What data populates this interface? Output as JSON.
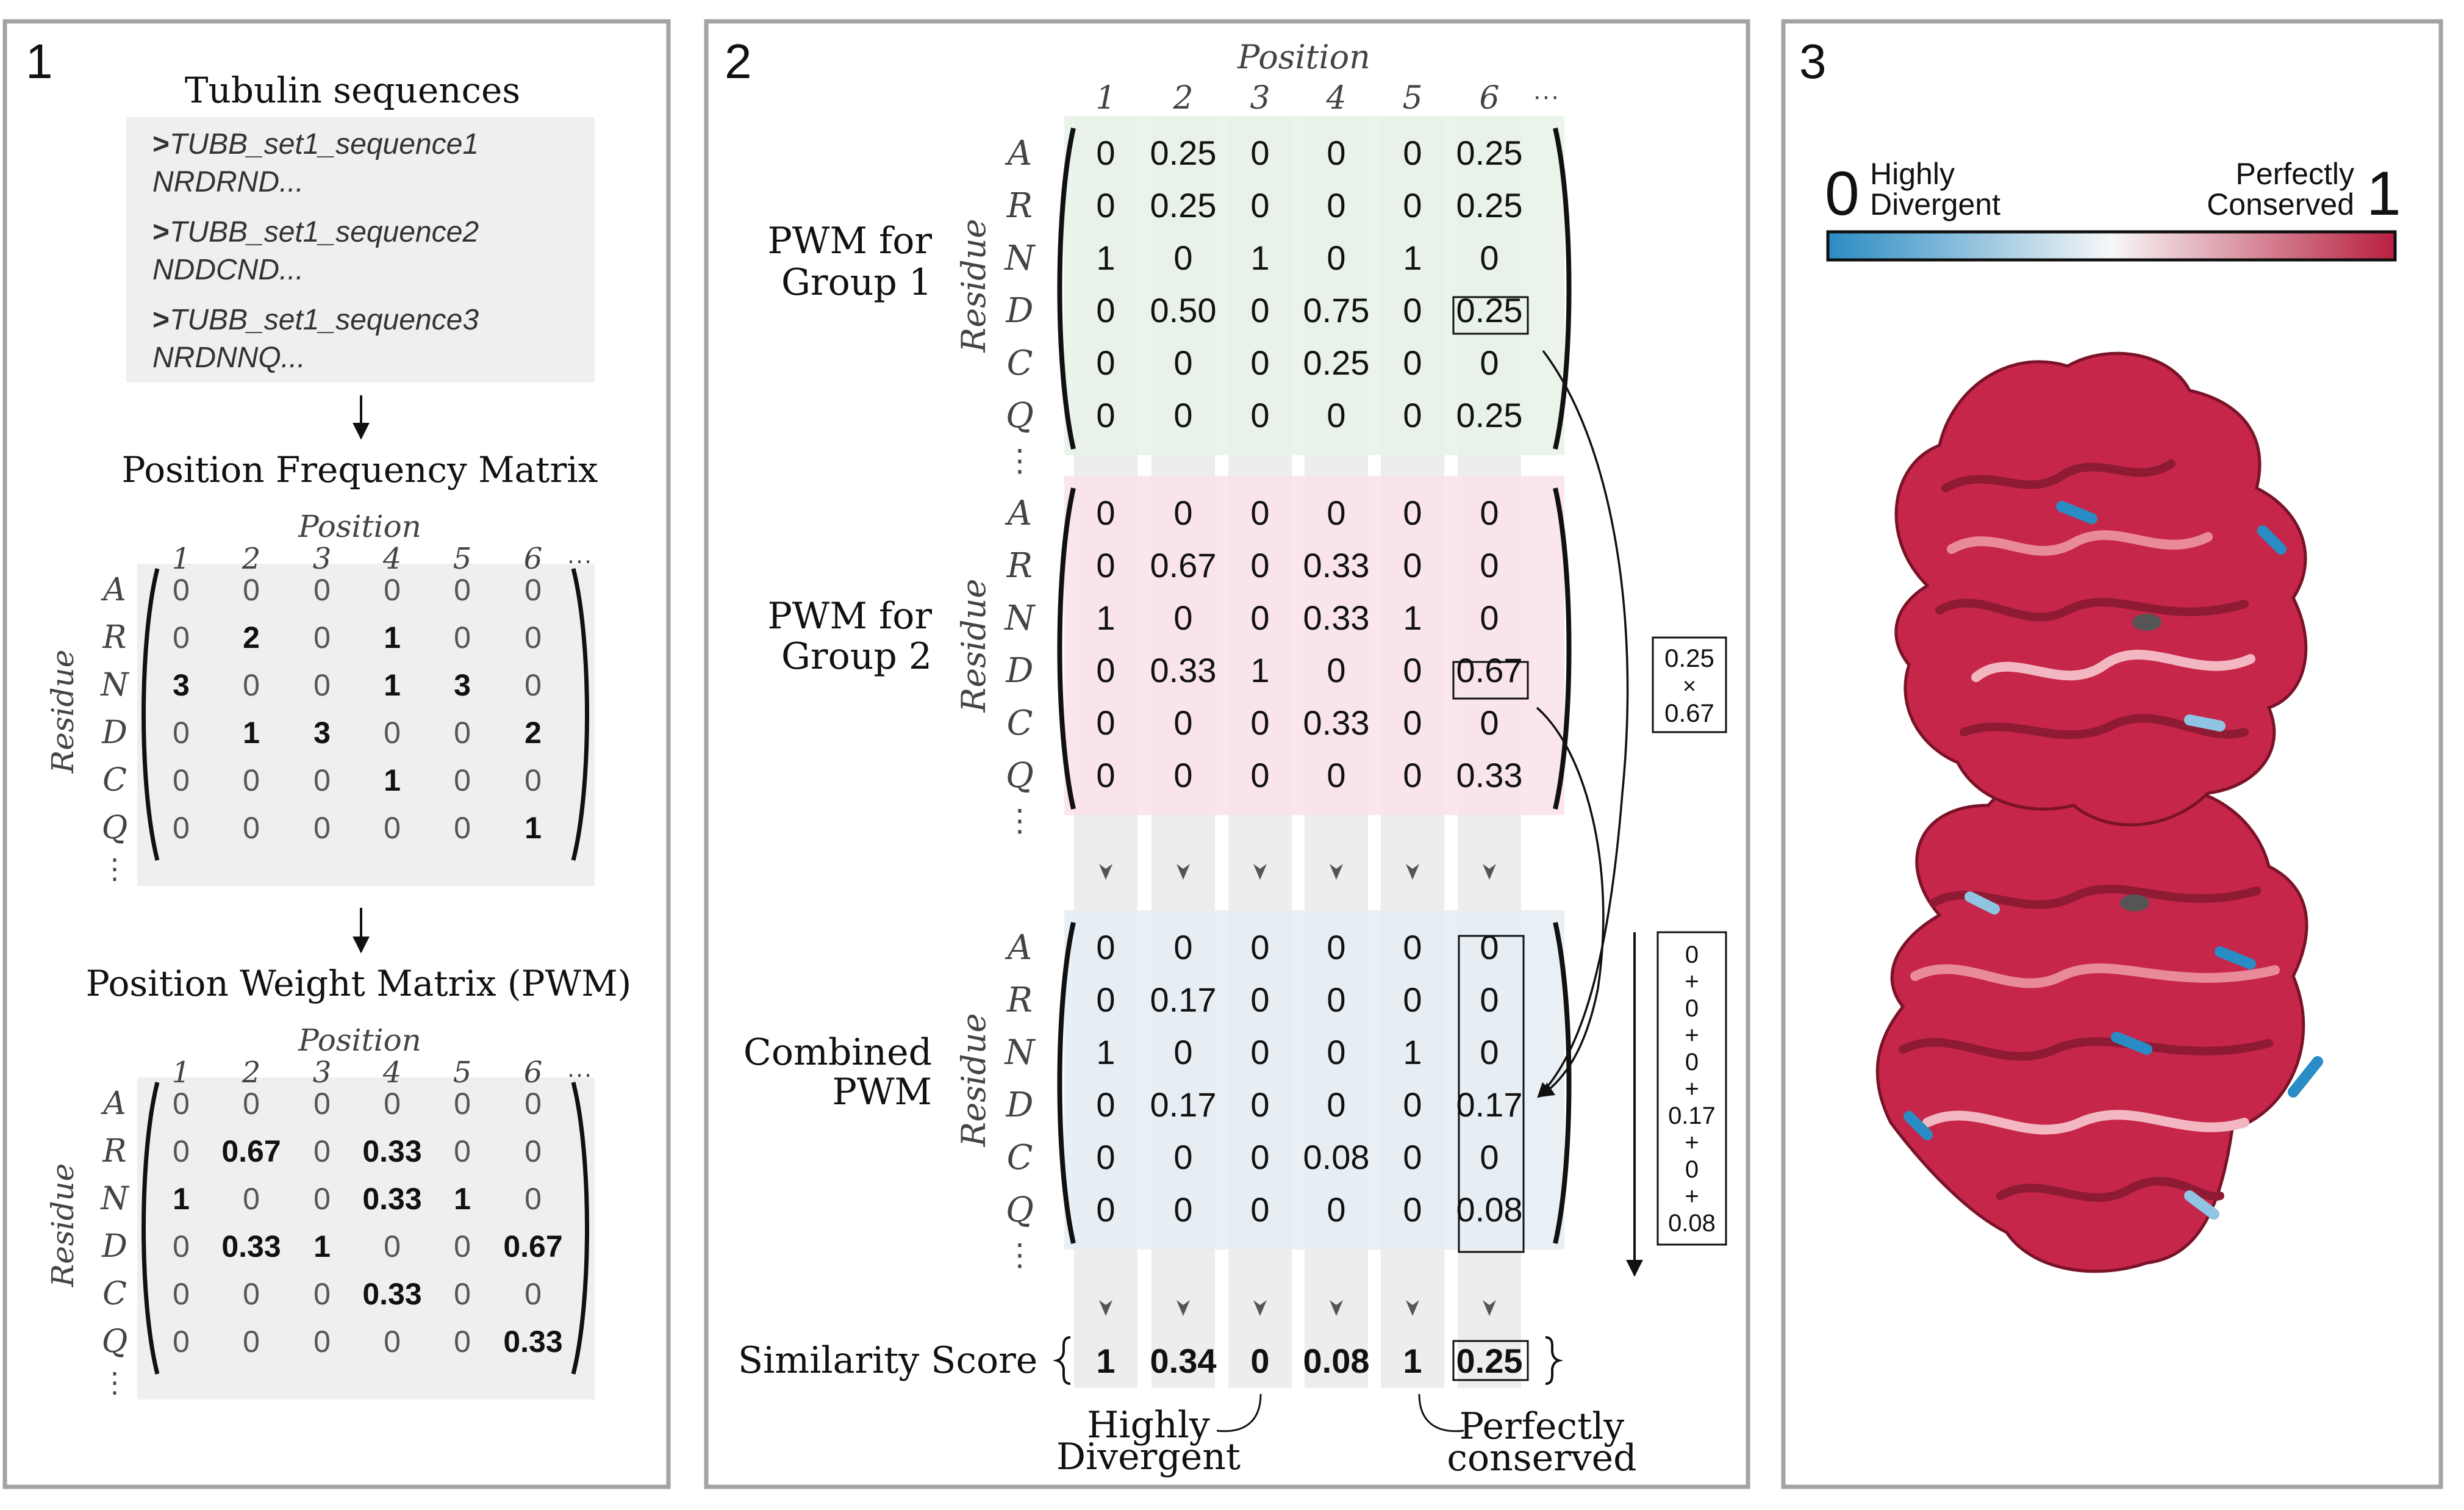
{
  "panels": [
    {
      "number": "1"
    },
    {
      "number": "2"
    },
    {
      "number": "3"
    }
  ],
  "panel1": {
    "title": "Tubulin sequences",
    "sequences": [
      {
        "header_prefix": ">",
        "header": "TUBB_set1_sequence1",
        "seq": "NRDRND..."
      },
      {
        "header_prefix": ">",
        "header": "TUBB_set1_sequence2",
        "seq": "NDDCND..."
      },
      {
        "header_prefix": ">",
        "header": "TUBB_set1_sequence3",
        "seq": "NRDNNQ..."
      }
    ],
    "pfm_title": "Position Frequency Matrix",
    "pwm_title": "Position Weight Matrix (PWM)",
    "position_label": "Position",
    "residue_label": "Residue",
    "columns": [
      "1",
      "2",
      "3",
      "4",
      "5",
      "6"
    ],
    "columns_more": "···",
    "residues": [
      "A",
      "R",
      "N",
      "D",
      "C",
      "Q"
    ],
    "rows_more": "⋮",
    "pfm": [
      [
        "0",
        "0",
        "0",
        "0",
        "0",
        "0"
      ],
      [
        "0",
        "2",
        "0",
        "1",
        "0",
        "0"
      ],
      [
        "3",
        "0",
        "0",
        "1",
        "3",
        "0"
      ],
      [
        "0",
        "1",
        "3",
        "0",
        "0",
        "2"
      ],
      [
        "0",
        "0",
        "0",
        "1",
        "0",
        "0"
      ],
      [
        "0",
        "0",
        "0",
        "0",
        "0",
        "1"
      ]
    ],
    "pwm": [
      [
        "0",
        "0",
        "0",
        "0",
        "0",
        "0"
      ],
      [
        "0",
        "0.67",
        "0",
        "0.33",
        "0",
        "0"
      ],
      [
        "1",
        "0",
        "0",
        "0.33",
        "1",
        "0"
      ],
      [
        "0",
        "0.33",
        "1",
        "0",
        "0",
        "0.67"
      ],
      [
        "0",
        "0",
        "0",
        "0.33",
        "0",
        "0"
      ],
      [
        "0",
        "0",
        "0",
        "0",
        "0",
        "0.33"
      ]
    ]
  },
  "panel2": {
    "position_label": "Position",
    "residue_label": "Residue",
    "columns": [
      "1",
      "2",
      "3",
      "4",
      "5",
      "6"
    ],
    "columns_more": "···",
    "residues": [
      "A",
      "R",
      "N",
      "D",
      "C",
      "Q"
    ],
    "rows_more": "⋮",
    "group1_label": [
      "PWM for",
      "Group 1"
    ],
    "group2_label": [
      "PWM for",
      "Group 2"
    ],
    "combined_label": [
      "Combined",
      "PWM"
    ],
    "group1": [
      [
        "0",
        "0.25",
        "0",
        "0",
        "0",
        "0.25"
      ],
      [
        "0",
        "0.25",
        "0",
        "0",
        "0",
        "0.25"
      ],
      [
        "1",
        "0",
        "1",
        "0",
        "1",
        "0"
      ],
      [
        "0",
        "0.50",
        "0",
        "0.75",
        "0",
        "0.25"
      ],
      [
        "0",
        "0",
        "0",
        "0.25",
        "0",
        "0"
      ],
      [
        "0",
        "0",
        "0",
        "0",
        "0",
        "0.25"
      ]
    ],
    "group2": [
      [
        "0",
        "0",
        "0",
        "0",
        "0",
        "0"
      ],
      [
        "0",
        "0.67",
        "0",
        "0.33",
        "0",
        "0"
      ],
      [
        "1",
        "0",
        "0",
        "0.33",
        "1",
        "0"
      ],
      [
        "0",
        "0.33",
        "1",
        "0",
        "0",
        "0.67"
      ],
      [
        "0",
        "0",
        "0",
        "0.33",
        "0",
        "0"
      ],
      [
        "0",
        "0",
        "0",
        "0",
        "0",
        "0.33"
      ]
    ],
    "combined": [
      [
        "0",
        "0",
        "0",
        "0",
        "0",
        "0"
      ],
      [
        "0",
        "0.17",
        "0",
        "0",
        "0",
        "0"
      ],
      [
        "1",
        "0",
        "0",
        "0",
        "1",
        "0"
      ],
      [
        "0",
        "0.17",
        "0",
        "0",
        "0",
        "0.17"
      ],
      [
        "0",
        "0",
        "0",
        "0.08",
        "0",
        "0"
      ],
      [
        "0",
        "0",
        "0",
        "0",
        "0",
        "0.08"
      ]
    ],
    "product_box": [
      "0.25",
      "×",
      "0.67"
    ],
    "sum_box": [
      "0",
      "+",
      "0",
      "+",
      "0",
      "+",
      "0.17",
      "+",
      "0",
      "+",
      "0.08"
    ],
    "similarity_label": "Similarity Score",
    "similarity": [
      "1",
      "0.34",
      "0",
      "0.08",
      "1",
      "0.25"
    ],
    "divergent_label": [
      "Highly",
      "Divergent"
    ],
    "conserved_label": [
      "Perfectly",
      "conserved"
    ],
    "colors": {
      "group1_bg": "#e6f2e8",
      "group2_bg": "#f9e2e7",
      "combined_bg": "#e4edf4",
      "column_bg": "#ededed"
    }
  },
  "panel3": {
    "scale_min": "0",
    "scale_max": "1",
    "min_label": [
      "Highly",
      "Divergent"
    ],
    "max_label": [
      "Perfectly",
      "Conserved"
    ],
    "colors": {
      "divergent": "#2a8cc4",
      "middle": "#f7f7f7",
      "conserved": "#b81f3f",
      "light_red": "#e98a9b"
    }
  }
}
